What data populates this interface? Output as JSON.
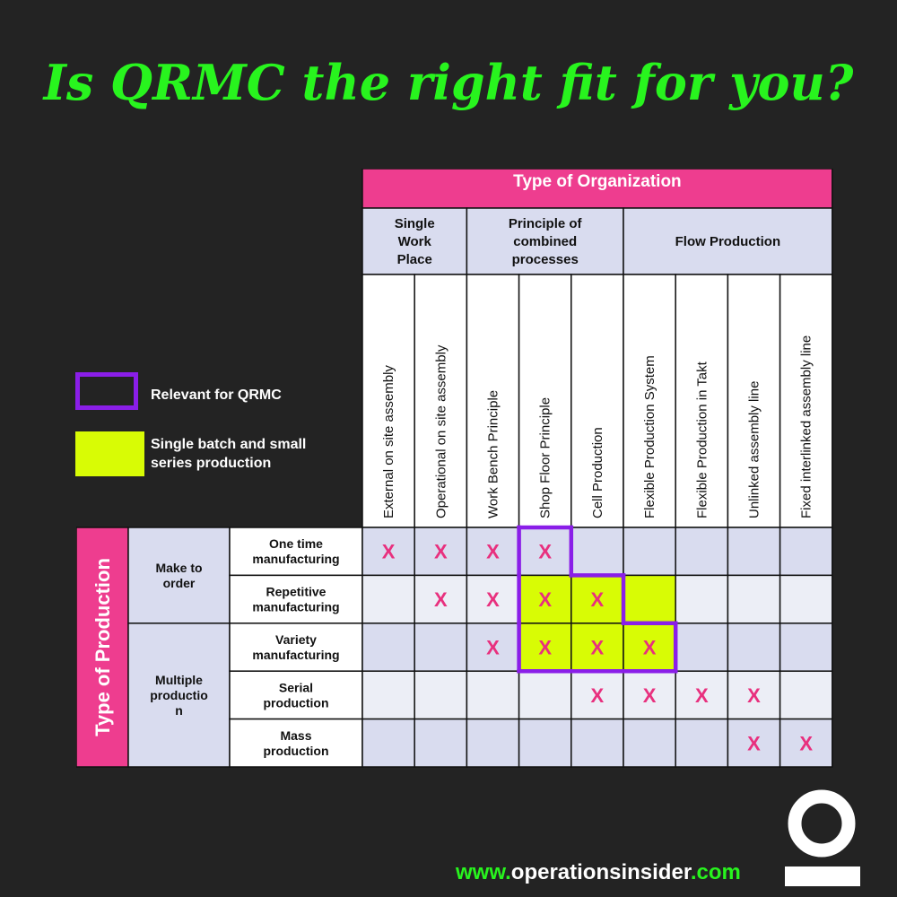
{
  "title": "Is QRMC the right fit for you?",
  "matrix": {
    "top_header": "Type of Organization",
    "groups": [
      {
        "label_lines": [
          "Single",
          "Work",
          "Place"
        ],
        "span": 2
      },
      {
        "label_lines": [
          "Principle of",
          "combined",
          "processes"
        ],
        "span": 3
      },
      {
        "label_lines": [
          "Flow Production"
        ],
        "span": 4
      }
    ],
    "columns": [
      "External on site assembly",
      "Operational on site assembly",
      "Work Bench Principle",
      "Shop Floor Principle",
      "Cell Production",
      "Flexible Production System",
      "Flexible Production in Takt",
      "Unlinked assembly line",
      "Fixed interlinked assembly line"
    ],
    "side_header": "Type of Production",
    "row_groups": [
      {
        "label_lines": [
          "Make to",
          "order"
        ],
        "rows": 2
      },
      {
        "label_lines": [
          "Multiple",
          "productio",
          "n"
        ],
        "rows": 3
      }
    ],
    "rows": [
      {
        "label_lines": [
          "One time",
          "manufacturing"
        ],
        "marks": [
          1,
          1,
          1,
          1,
          0,
          0,
          0,
          0,
          0
        ],
        "highlight": [
          0,
          0,
          0,
          0,
          0,
          0,
          0,
          0,
          0
        ]
      },
      {
        "label_lines": [
          "Repetitive",
          "manufacturing"
        ],
        "marks": [
          0,
          1,
          1,
          1,
          1,
          0,
          0,
          0,
          0
        ],
        "highlight": [
          0,
          0,
          0,
          1,
          1,
          1,
          0,
          0,
          0
        ]
      },
      {
        "label_lines": [
          "Variety",
          "manufacturing"
        ],
        "marks": [
          0,
          0,
          1,
          1,
          1,
          1,
          0,
          0,
          0
        ],
        "highlight": [
          0,
          0,
          0,
          1,
          1,
          1,
          0,
          0,
          0
        ]
      },
      {
        "label_lines": [
          "Serial",
          "production"
        ],
        "marks": [
          0,
          0,
          0,
          0,
          1,
          1,
          1,
          1,
          0
        ],
        "highlight": [
          0,
          0,
          0,
          0,
          0,
          0,
          0,
          0,
          0
        ]
      },
      {
        "label_lines": [
          "Mass",
          "production"
        ],
        "marks": [
          0,
          0,
          0,
          0,
          0,
          0,
          0,
          1,
          1
        ],
        "highlight": [
          0,
          0,
          0,
          0,
          0,
          0,
          0,
          0,
          0
        ]
      }
    ],
    "mark_symbol": "X",
    "relevant_cells": [
      [
        0,
        3
      ],
      [
        1,
        3
      ],
      [
        1,
        4
      ],
      [
        2,
        3
      ],
      [
        2,
        4
      ],
      [
        2,
        5
      ]
    ]
  },
  "legend": {
    "relevant_label": "Relevant for QRMC",
    "single_label": "Single batch and small series production"
  },
  "website": {
    "prefix": "www.",
    "name": "operationsinsider",
    "suffix": ".com"
  },
  "colors": {
    "background": "#232323",
    "title_green": "#28f41e",
    "header_pink": "#ee3d8f",
    "cell_light": "#d9dcef",
    "highlight_yellow": "#d8fc05",
    "relevant_purple": "#8a1ee8",
    "mark_pink": "#e8307e"
  }
}
